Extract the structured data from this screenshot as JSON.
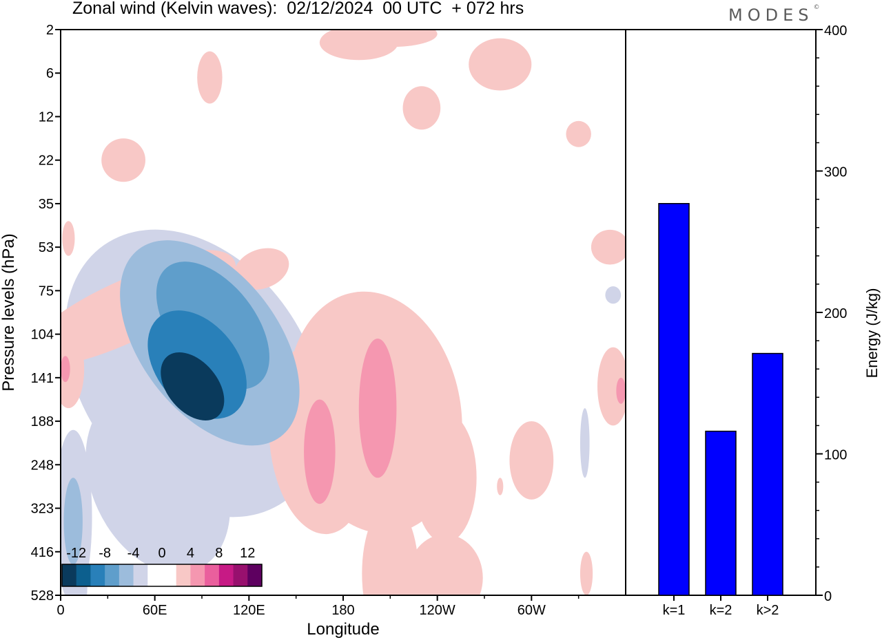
{
  "title": "Zonal wind (Kelvin waves):  02/12/2024  00 UTC  + 072 hrs",
  "brand": "MODES",
  "brand_mark": "©",
  "colors": {
    "neg": [
      "#0a3a5c",
      "#0c5f8e",
      "#2980b9",
      "#5f9ecb",
      "#9cbcdc",
      "#d0d4e8"
    ],
    "pos": [
      "#f8c8c6",
      "#f597b0",
      "#ea5f9d",
      "#c71a85",
      "#98106e",
      "#5e0060"
    ],
    "bar": "#0000ff"
  },
  "chart_data": [
    {
      "type": "heatmap",
      "xlabel": "Longitude",
      "ylabel": "Pressure levels (hPa)",
      "x_ticks": [
        "0",
        "60E",
        "120E",
        "180",
        "120W",
        "60W"
      ],
      "x_tick_values": [
        0,
        60,
        120,
        180,
        240,
        300
      ],
      "xlim": [
        0,
        360
      ],
      "y_ticks": [
        "2",
        "6",
        "12",
        "22",
        "35",
        "53",
        "75",
        "104",
        "141",
        "188",
        "248",
        "323",
        "416",
        "528"
      ],
      "colorbar": {
        "ticks": [
          "-12",
          "-8",
          "-4",
          "0",
          "4",
          "8",
          "12"
        ],
        "levels": [
          -14,
          -12,
          -10,
          -8,
          -6,
          -4,
          -2,
          2,
          4,
          6,
          8,
          10,
          12,
          14
        ]
      },
      "blobs": [
        {
          "x": 97,
          "y": 6.8,
          "rx": 27,
          "ry": 1.7,
          "rot": 38,
          "v": -8
        },
        {
          "x": 95,
          "y": 7.2,
          "rx": 44,
          "ry": 2.7,
          "rot": 37,
          "v": -5.5
        },
        {
          "x": 85,
          "y": 7.9,
          "rx": 72,
          "ry": 3.6,
          "rot": 35,
          "v": -3
        },
        {
          "x": 62,
          "y": 10.4,
          "rx": 42,
          "ry": 2.2,
          "rot": 25,
          "v": -2.5
        },
        {
          "x": 84,
          "y": 8.2,
          "rx": 16,
          "ry": 0.9,
          "rot": 40,
          "v": -14
        },
        {
          "x": 87,
          "y": 7.7,
          "rx": 26,
          "ry": 1.4,
          "rot": 38,
          "v": -10
        },
        {
          "x": 8,
          "y": 11.2,
          "rx": 12,
          "ry": 2.0,
          "rot": 0,
          "v": -3
        },
        {
          "x": 8,
          "y": 11.3,
          "rx": 6,
          "ry": 1.0,
          "rot": 0,
          "v": -4.5
        },
        {
          "x": 13,
          "y": 12.8,
          "rx": 4,
          "ry": 0.6,
          "rot": 0,
          "v": -3
        },
        {
          "x": 40,
          "y": 6.5,
          "rx": 70,
          "ry": 0.7,
          "rot": 25,
          "v": 3
        },
        {
          "x": 70,
          "y": 6.0,
          "rx": 45,
          "ry": 0.7,
          "rot": 25,
          "v": 3
        },
        {
          "x": 128,
          "y": 5.5,
          "rx": 18,
          "ry": 0.45,
          "rot": 20,
          "v": 3
        },
        {
          "x": 5,
          "y": 7.8,
          "rx": 10,
          "ry": 0.9,
          "rot": 0,
          "v": 3
        },
        {
          "x": 3,
          "y": 7.8,
          "rx": 3,
          "ry": 0.3,
          "rot": 0,
          "v": 5
        },
        {
          "x": 5,
          "y": 4.8,
          "rx": 4,
          "ry": 0.4,
          "rot": 0,
          "v": 3
        },
        {
          "x": 200,
          "y": 8.8,
          "rx": 55,
          "ry": 2.8,
          "rot": 10,
          "v": 3
        },
        {
          "x": 165,
          "y": 9.4,
          "rx": 32,
          "ry": 2.2,
          "rot": 5,
          "v": 3
        },
        {
          "x": 245,
          "y": 10.3,
          "rx": 20,
          "ry": 1.5,
          "rot": 0,
          "v": 2.5
        },
        {
          "x": 245,
          "y": 12.6,
          "rx": 24,
          "ry": 1.0,
          "rot": 0,
          "v": 2.5
        },
        {
          "x": 165,
          "y": 9.7,
          "rx": 10,
          "ry": 1.2,
          "rot": 0,
          "v": 5
        },
        {
          "x": 202,
          "y": 8.7,
          "rx": 12,
          "ry": 1.6,
          "rot": 0,
          "v": 5
        },
        {
          "x": 300,
          "y": 9.9,
          "rx": 14,
          "ry": 0.9,
          "rot": 0,
          "v": 3
        },
        {
          "x": 100,
          "y": 11.7,
          "rx": 18,
          "ry": 1.6,
          "rot": 10,
          "v": -2
        },
        {
          "x": 230,
          "y": 1.8,
          "rx": 12,
          "ry": 0.5,
          "rot": 0,
          "v": 3
        },
        {
          "x": 280,
          "y": 0.8,
          "rx": 20,
          "ry": 0.6,
          "rot": 0,
          "v": 3
        },
        {
          "x": 298,
          "y": 1.2,
          "rx": 14,
          "ry": 0.5,
          "rot": 0,
          "v": -2
        },
        {
          "x": 310,
          "y": 1.0,
          "rx": 20,
          "ry": 0.55,
          "rot": 0,
          "v": -2
        },
        {
          "x": 350,
          "y": 5.0,
          "rx": 12,
          "ry": 0.4,
          "rot": 0,
          "v": 3
        },
        {
          "x": 340,
          "y": 9.0,
          "rx": 10,
          "ry": 1.6,
          "rot": 0,
          "v": -2
        },
        {
          "x": 334,
          "y": 9.5,
          "rx": 3,
          "ry": 0.8,
          "rot": 0,
          "v": -3.5
        },
        {
          "x": 352,
          "y": 8.2,
          "rx": 10,
          "ry": 0.9,
          "rot": 0,
          "v": 3
        },
        {
          "x": 357,
          "y": 8.3,
          "rx": 3,
          "ry": 0.3,
          "rot": 0,
          "v": 5
        },
        {
          "x": 350,
          "y": 6.0,
          "rx": 10,
          "ry": 0.5,
          "rot": 0,
          "v": -2
        },
        {
          "x": 352,
          "y": 6.1,
          "rx": 5,
          "ry": 0.2,
          "rot": 0,
          "v": -3.5
        },
        {
          "x": 355,
          "y": 10.3,
          "rx": 6,
          "ry": 0.6,
          "rot": 0,
          "v": -2
        },
        {
          "x": 40,
          "y": 3.0,
          "rx": 14,
          "ry": 0.5,
          "rot": 0,
          "v": 3
        },
        {
          "x": 45,
          "y": 0.0,
          "rx": 14,
          "ry": 0.3,
          "rot": 0,
          "v": -2
        },
        {
          "x": 80,
          "y": 0.3,
          "rx": 25,
          "ry": 0.45,
          "rot": 0,
          "v": -2
        },
        {
          "x": 95,
          "y": 1.1,
          "rx": 8,
          "ry": 0.6,
          "rot": 0,
          "v": 3
        },
        {
          "x": 190,
          "y": 0.3,
          "rx": 25,
          "ry": 0.4,
          "rot": 0,
          "v": 3
        },
        {
          "x": 210,
          "y": 0.1,
          "rx": 30,
          "ry": 0.3,
          "rot": 0,
          "v": 3
        },
        {
          "x": 125,
          "y": 3.7,
          "rx": 8,
          "ry": 0.3,
          "rot": 0,
          "v": -2
        },
        {
          "x": 140,
          "y": 3.8,
          "rx": 10,
          "ry": 0.35,
          "rot": 0,
          "v": -2
        },
        {
          "x": 330,
          "y": 2.4,
          "rx": 8,
          "ry": 0.3,
          "rot": 0,
          "v": 3
        },
        {
          "x": 210,
          "y": 12.5,
          "rx": 18,
          "ry": 1.6,
          "rot": 0,
          "v": 3
        },
        {
          "x": 335,
          "y": 12.5,
          "rx": 4,
          "ry": 0.5,
          "rot": 0,
          "v": 3
        },
        {
          "x": 280,
          "y": 10.5,
          "rx": 2,
          "ry": 0.2,
          "rot": 0,
          "v": 3
        }
      ]
    },
    {
      "type": "bar",
      "categories": [
        "k=1",
        "k=2",
        "k>2"
      ],
      "values": [
        277,
        116,
        171
      ],
      "ylabel": "Energy (J/kg)",
      "ylim": [
        0,
        400
      ],
      "y_ticks": [
        0,
        100,
        200,
        300,
        400
      ]
    }
  ]
}
